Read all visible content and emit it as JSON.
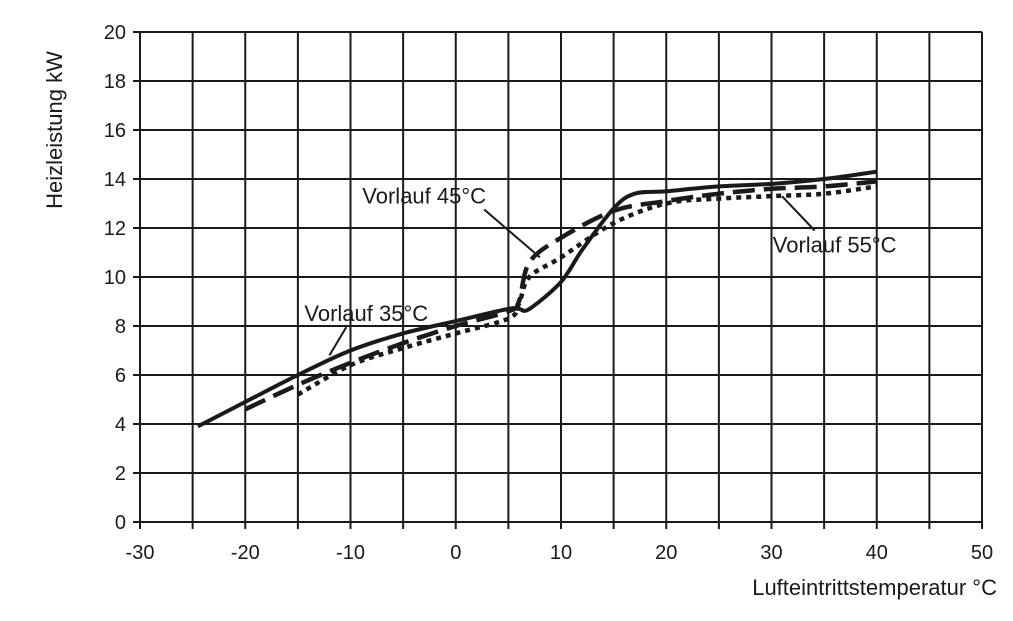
{
  "chart_data": {
    "type": "line",
    "title": "",
    "xlabel": "Lufteintrittstemperatur  °C",
    "ylabel": "Heizleistung kW",
    "xlim": [
      -30,
      50
    ],
    "ylim": [
      0,
      20
    ],
    "x_ticks": [
      -30,
      -20,
      -10,
      0,
      10,
      20,
      30,
      40,
      50
    ],
    "y_ticks": [
      0,
      2,
      4,
      6,
      8,
      10,
      12,
      14,
      16,
      18,
      20
    ],
    "x_tick_labels": [
      "-30",
      "-20",
      "-10",
      "0",
      "10",
      "20",
      "30",
      "40",
      "50"
    ],
    "y_tick_labels": [
      "0",
      "2",
      "4",
      "6",
      "8",
      "10",
      "12",
      "14",
      "16",
      "18",
      "20"
    ],
    "grid": true,
    "series": [
      {
        "name": "Vorlauf 35°C",
        "style": "solid",
        "x": [
          -24.5,
          -20,
          -15,
          -10,
          -5,
          0,
          5,
          6,
          7,
          10,
          12,
          15,
          17,
          20,
          25,
          30,
          35,
          40
        ],
        "y": [
          3.9,
          4.9,
          6.0,
          7.0,
          7.7,
          8.2,
          8.7,
          8.7,
          8.7,
          9.8,
          11.1,
          12.8,
          13.4,
          13.5,
          13.7,
          13.8,
          14.0,
          14.3
        ]
      },
      {
        "name": "Vorlauf 45°C",
        "style": "dashed",
        "x": [
          -20,
          -15,
          -10,
          -5,
          0,
          5,
          6,
          7,
          10,
          15,
          20,
          25,
          30,
          35,
          40
        ],
        "y": [
          4.6,
          5.6,
          6.5,
          7.3,
          8.0,
          8.6,
          9.0,
          10.6,
          11.6,
          12.7,
          13.1,
          13.4,
          13.6,
          13.7,
          13.9
        ]
      },
      {
        "name": "Vorlauf 55°C",
        "style": "dotted",
        "x": [
          -15,
          -10,
          -5,
          0,
          5,
          6,
          7,
          10,
          15,
          20,
          25,
          30,
          35,
          40
        ],
        "y": [
          5.2,
          6.4,
          7.1,
          7.7,
          8.3,
          8.9,
          10.0,
          10.8,
          12.2,
          13.0,
          13.2,
          13.3,
          13.4,
          13.7
        ]
      }
    ],
    "annotations": [
      {
        "text": "Vorlauf 35°C",
        "series": 0,
        "label_at": [
          -8.5,
          8.2
        ],
        "points_to": [
          -12,
          6.8
        ]
      },
      {
        "text": "Vorlauf 45°C",
        "series": 1,
        "label_at": [
          -3,
          13.0
        ],
        "points_to": [
          8,
          10.8
        ]
      },
      {
        "text": "Vorlauf 55°C",
        "series": 2,
        "label_at": [
          36,
          11.0
        ],
        "points_to": [
          31,
          13.3
        ]
      }
    ]
  },
  "colors": {
    "line": "#1a1a1a",
    "grid": "#1a1a1a",
    "background": "#ffffff"
  }
}
